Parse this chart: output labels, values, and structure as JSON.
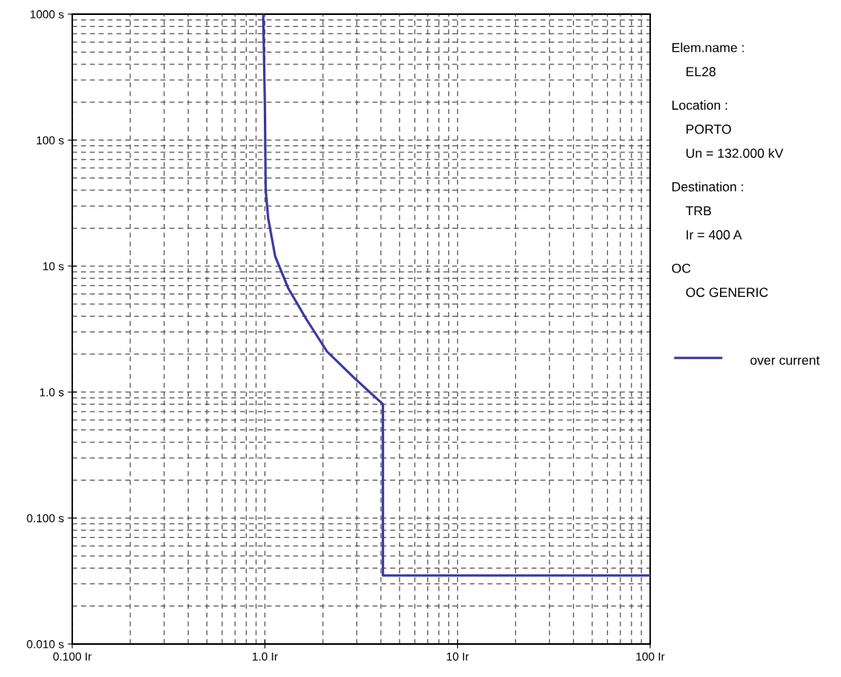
{
  "chart_data": {
    "type": "line",
    "log": "xy",
    "x": [
      0.98,
      1.0,
      1.01,
      1.04,
      1.13,
      1.32,
      1.64,
      2.1,
      2.9,
      4.1,
      4.1,
      100
    ],
    "series": [
      {
        "name": "over current",
        "color": "#3a3aa0",
        "values": [
          1000,
          190,
          40,
          24,
          12,
          6.7,
          3.8,
          2.1,
          1.3,
          0.8,
          0.035,
          0.035
        ]
      }
    ],
    "xlim": [
      0.1,
      100
    ],
    "ylim": [
      0.01,
      1000
    ],
    "xticks": [
      {
        "value": 0.1,
        "label": "0.100 Ir"
      },
      {
        "value": 0.2,
        "label": null
      },
      {
        "value": 0.3,
        "label": null
      },
      {
        "value": 0.4,
        "label": null
      },
      {
        "value": 0.5,
        "label": null
      },
      {
        "value": 0.6,
        "label": null
      },
      {
        "value": 0.7,
        "label": null
      },
      {
        "value": 0.8,
        "label": null
      },
      {
        "value": 0.9,
        "label": null
      },
      {
        "value": 1,
        "label": "1.0 Ir"
      },
      {
        "value": 2,
        "label": null
      },
      {
        "value": 3,
        "label": null
      },
      {
        "value": 4,
        "label": null
      },
      {
        "value": 5,
        "label": null
      },
      {
        "value": 6,
        "label": null
      },
      {
        "value": 7,
        "label": null
      },
      {
        "value": 8,
        "label": null
      },
      {
        "value": 9,
        "label": null
      },
      {
        "value": 10,
        "label": "10 Ir"
      },
      {
        "value": 20,
        "label": null
      },
      {
        "value": 30,
        "label": null
      },
      {
        "value": 40,
        "label": null
      },
      {
        "value": 50,
        "label": null
      },
      {
        "value": 60,
        "label": null
      },
      {
        "value": 70,
        "label": null
      },
      {
        "value": 80,
        "label": null
      },
      {
        "value": 90,
        "label": null
      },
      {
        "value": 100,
        "label": "100 Ir"
      }
    ],
    "yticks": [
      {
        "value": 0.01,
        "label": "0.010 s"
      },
      {
        "value": 0.02,
        "label": null
      },
      {
        "value": 0.03,
        "label": null
      },
      {
        "value": 0.04,
        "label": null
      },
      {
        "value": 0.05,
        "label": null
      },
      {
        "value": 0.06,
        "label": null
      },
      {
        "value": 0.07,
        "label": null
      },
      {
        "value": 0.08,
        "label": null
      },
      {
        "value": 0.09,
        "label": null
      },
      {
        "value": 0.1,
        "label": "0.100 s"
      },
      {
        "value": 0.2,
        "label": null
      },
      {
        "value": 0.3,
        "label": null
      },
      {
        "value": 0.4,
        "label": null
      },
      {
        "value": 0.5,
        "label": null
      },
      {
        "value": 0.6,
        "label": null
      },
      {
        "value": 0.7,
        "label": null
      },
      {
        "value": 0.8,
        "label": null
      },
      {
        "value": 0.9,
        "label": null
      },
      {
        "value": 1,
        "label": "1.0 s"
      },
      {
        "value": 2,
        "label": null
      },
      {
        "value": 3,
        "label": null
      },
      {
        "value": 4,
        "label": null
      },
      {
        "value": 5,
        "label": null
      },
      {
        "value": 6,
        "label": null
      },
      {
        "value": 7,
        "label": null
      },
      {
        "value": 8,
        "label": null
      },
      {
        "value": 9,
        "label": null
      },
      {
        "value": 10,
        "label": "10 s"
      },
      {
        "value": 20,
        "label": null
      },
      {
        "value": 30,
        "label": null
      },
      {
        "value": 40,
        "label": null
      },
      {
        "value": 50,
        "label": null
      },
      {
        "value": 60,
        "label": null
      },
      {
        "value": 70,
        "label": null
      },
      {
        "value": 80,
        "label": null
      },
      {
        "value": 90,
        "label": null
      },
      {
        "value": 100,
        "label": "100 s"
      },
      {
        "value": 200,
        "label": null
      },
      {
        "value": 300,
        "label": null
      },
      {
        "value": 400,
        "label": null
      },
      {
        "value": 500,
        "label": null
      },
      {
        "value": 600,
        "label": null
      },
      {
        "value": 700,
        "label": null
      },
      {
        "value": 800,
        "label": null
      },
      {
        "value": 900,
        "label": null
      },
      {
        "value": 1000,
        "label": "1000 s"
      }
    ],
    "grid": true,
    "legend": "right",
    "line_style": "solid",
    "annotations": [
      "Elem.name :",
      "EL28",
      "Location :",
      "PORTO",
      "Un = 132.000 kV",
      "Destination :",
      "TRB",
      "Ir = 400 A",
      "OC",
      "OC GENERIC"
    ]
  }
}
